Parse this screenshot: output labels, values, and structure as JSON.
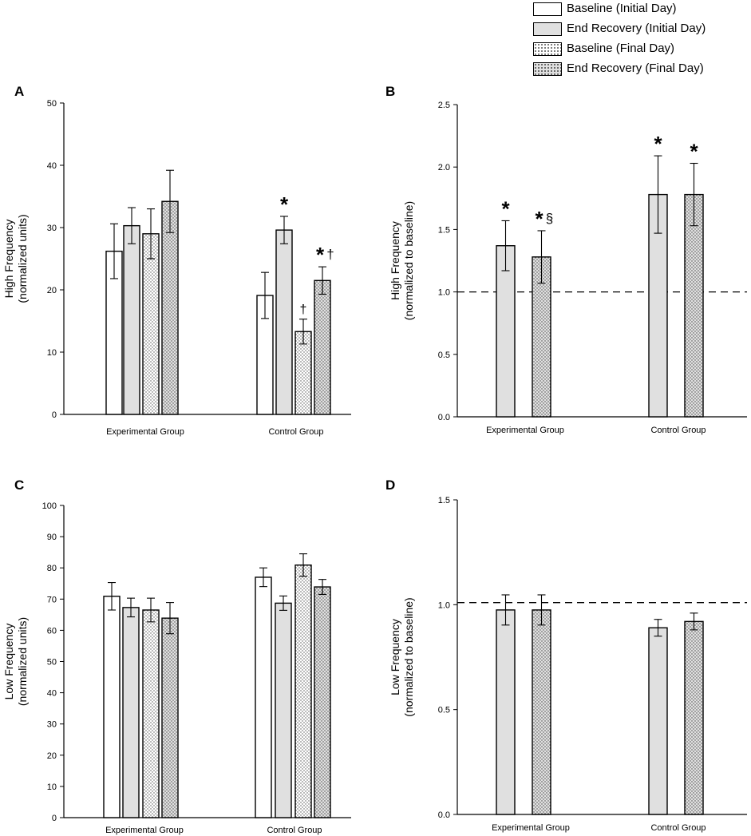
{
  "legend": [
    {
      "label": "Baseline (Initial Day)",
      "fill": "#ffffff",
      "pattern": "solid"
    },
    {
      "label": "End Recovery (Initial Day)",
      "fill": "#e0e0e0",
      "pattern": "solid"
    },
    {
      "label": "Baseline (Final Day)",
      "fill": "#ffffff",
      "pattern": "dots"
    },
    {
      "label": "End Recovery (Final Day)",
      "fill": "#e0e0e0",
      "pattern": "dots"
    }
  ],
  "chart_data": [
    {
      "panel": "A",
      "type": "bar",
      "ylabel": "High Frequency\n(normalized units)",
      "ylim": [
        0,
        50
      ],
      "yticks": [
        0,
        10,
        20,
        30,
        40,
        50
      ],
      "categories": [
        "Experimental Group",
        "Control Group"
      ],
      "series": [
        {
          "name": "Baseline (Initial Day)",
          "values": [
            26.2,
            19.1
          ],
          "errors": [
            4.4,
            3.7
          ],
          "annotations": [
            "",
            ""
          ]
        },
        {
          "name": "End Recovery (Initial Day)",
          "values": [
            30.3,
            29.6
          ],
          "errors": [
            2.9,
            2.2
          ],
          "annotations": [
            "",
            "*"
          ]
        },
        {
          "name": "Baseline (Final Day)",
          "values": [
            29.0,
            13.3
          ],
          "errors": [
            4.0,
            2.0
          ],
          "annotations": [
            "",
            "†"
          ]
        },
        {
          "name": "End Recovery (Final Day)",
          "values": [
            34.2,
            21.5
          ],
          "errors": [
            5.0,
            2.2
          ],
          "annotations": [
            "",
            "*†"
          ]
        }
      ],
      "reference_line": null
    },
    {
      "panel": "B",
      "type": "bar",
      "ylabel": "High Frequency\n(normalized to baseline)",
      "ylim": [
        0,
        2.5
      ],
      "yticks": [
        "0.0",
        "0.5",
        "1.0",
        "1.5",
        "2.0",
        "2.5"
      ],
      "categories": [
        "Experimental Group",
        "Control Group"
      ],
      "series": [
        {
          "name": "End Recovery (Initial Day)",
          "values": [
            1.37,
            1.78
          ],
          "errors": [
            0.2,
            0.31
          ],
          "annotations": [
            "*",
            "*"
          ]
        },
        {
          "name": "End Recovery (Final Day)",
          "values": [
            1.28,
            1.78
          ],
          "errors": [
            0.21,
            0.25
          ],
          "annotations": [
            "*§",
            "*"
          ]
        }
      ],
      "reference_line": 1.0
    },
    {
      "panel": "C",
      "type": "bar",
      "ylabel": "Low Frequency\n(normalized units)",
      "ylim": [
        0,
        100
      ],
      "yticks": [
        0,
        10,
        20,
        30,
        40,
        50,
        60,
        70,
        80,
        90,
        100
      ],
      "categories": [
        "Experimental Group",
        "Control Group"
      ],
      "series": [
        {
          "name": "Baseline (Initial Day)",
          "values": [
            70.9,
            77.0
          ],
          "errors": [
            4.4,
            3.0
          ],
          "annotations": [
            "",
            ""
          ]
        },
        {
          "name": "End Recovery (Initial Day)",
          "values": [
            67.3,
            68.7
          ],
          "errors": [
            3.0,
            2.3
          ],
          "annotations": [
            "",
            ""
          ]
        },
        {
          "name": "Baseline (Final Day)",
          "values": [
            66.5,
            80.9
          ],
          "errors": [
            3.8,
            3.6
          ],
          "annotations": [
            "",
            ""
          ]
        },
        {
          "name": "End Recovery (Final Day)",
          "values": [
            63.9,
            73.9
          ],
          "errors": [
            5.0,
            2.4
          ],
          "annotations": [
            "",
            ""
          ]
        }
      ],
      "reference_line": null
    },
    {
      "panel": "D",
      "type": "bar",
      "ylabel": "Low Frequency\n(normalized to baseline)",
      "ylim": [
        0,
        1.5
      ],
      "yticks": [
        "0.0",
        "0.5",
        "1.0",
        "1.5"
      ],
      "categories": [
        "Experimental Group",
        "Control Group"
      ],
      "series": [
        {
          "name": "End Recovery (Initial Day)",
          "values": [
            0.975,
            0.89
          ],
          "errors": [
            0.072,
            0.04
          ],
          "annotations": [
            "",
            ""
          ]
        },
        {
          "name": "End Recovery (Final Day)",
          "values": [
            0.975,
            0.92
          ],
          "errors": [
            0.072,
            0.04
          ],
          "annotations": [
            "",
            ""
          ]
        }
      ],
      "reference_line": 1.01
    }
  ]
}
